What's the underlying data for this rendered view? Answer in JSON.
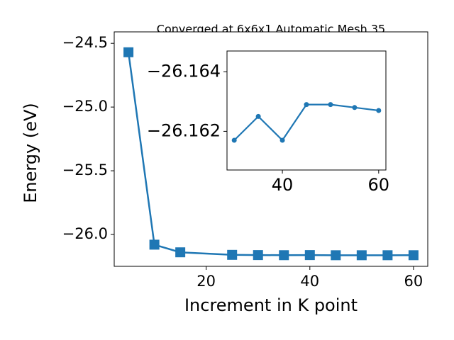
{
  "chart_data": [
    {
      "type": "line",
      "title": "Converged at 6x6x1 Automatic Mesh 35",
      "x_label": "Increment in K point",
      "y_label": "Energy (eV)",
      "x": [
        5,
        10,
        15,
        25,
        30,
        35,
        40,
        45,
        50,
        55,
        60
      ],
      "series": [
        {
          "name": "energy",
          "color": "#1f77b4",
          "marker": "square",
          "values": [
            -24.57,
            -26.08,
            -26.14,
            -26.16,
            -26.1617,
            -26.1625,
            -26.1617,
            -26.1629,
            -26.1629,
            -26.1628,
            -26.1627
          ]
        }
      ],
      "xlim": [
        2.25,
        62.75
      ],
      "ylim": [
        -26.25,
        -24.41
      ],
      "xticks": [
        20,
        40,
        60
      ],
      "yticks": [
        {
          "value": -24.5,
          "label": "−24.5"
        },
        {
          "value": -25.0,
          "label": "−25.0"
        },
        {
          "value": -25.5,
          "label": "−25.5"
        },
        {
          "value": -26.0,
          "label": "−26.0"
        }
      ]
    },
    {
      "type": "line",
      "x": [
        30,
        35,
        40,
        45,
        50,
        55,
        60
      ],
      "series": [
        {
          "name": "energy",
          "color": "#1f77b4",
          "marker": "circle",
          "values": [
            -26.1617,
            -26.1625,
            -26.1617,
            -26.1629,
            -26.1629,
            -26.1628,
            -26.1627
          ]
        }
      ],
      "xlim": [
        28.5,
        61.5
      ],
      "ylim": [
        -26.1607,
        -26.1647
      ],
      "xticks": [
        40,
        60
      ],
      "yticks": [
        {
          "value": -26.164,
          "label": "−26.164"
        },
        {
          "value": -26.162,
          "label": "−26.162"
        }
      ]
    }
  ]
}
